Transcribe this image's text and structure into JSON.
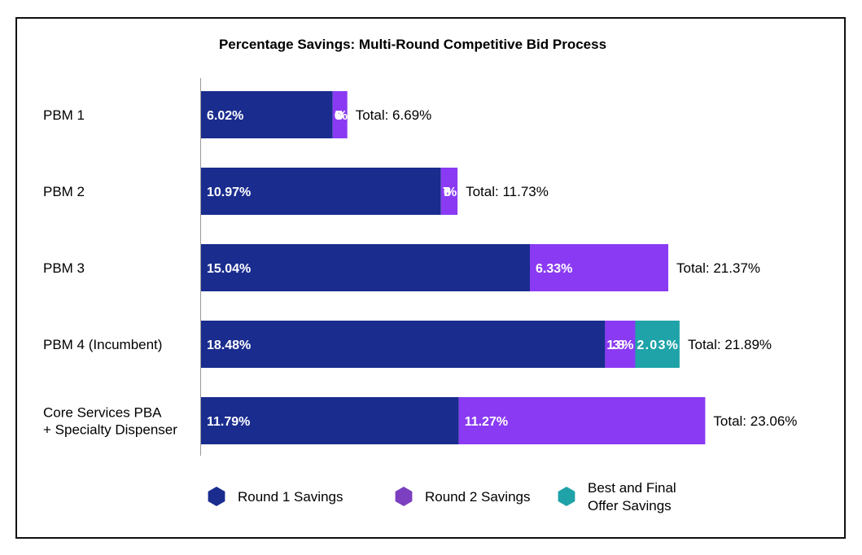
{
  "chart_data": {
    "type": "bar",
    "orientation": "horizontal",
    "stacked": true,
    "title": "Percentage Savings: Multi-Round Competitive Bid Process",
    "categories": [
      [
        "PBM 1"
      ],
      [
        "PBM 2"
      ],
      [
        "PBM 3"
      ],
      [
        "PBM 4 (Incumbent)"
      ],
      [
        "Core Services PBA",
        "+ Specialty Dispenser"
      ]
    ],
    "series": [
      {
        "name": "Round 1 Savings",
        "color": "#1b2c8f",
        "values": [
          6.02,
          10.97,
          15.04,
          18.48,
          11.79
        ],
        "labels": [
          "6.02%",
          "10.97%",
          "15.04%",
          "18.48%",
          "11.79%"
        ]
      },
      {
        "name": "Round 2 Savings",
        "color": "#8a3af2",
        "values": [
          0.67,
          0.76,
          6.33,
          1.38,
          11.27
        ],
        "labels": [
          "0.67%",
          "0.76%",
          "6.33%",
          "1.38%",
          "11.27%"
        ]
      },
      {
        "name": "Best and Final Offer Savings",
        "color": "#1fa3a8",
        "values": [
          0,
          0,
          0,
          2.03,
          0
        ],
        "labels": [
          "",
          "",
          "",
          "2.03%",
          ""
        ]
      }
    ],
    "totals": [
      "Total: 6.69%",
      "Total: 11.73%",
      "Total: 21.37%",
      "Total: 21.89%",
      "Total: 23.06%"
    ],
    "legend": {
      "position": "bottom",
      "items": [
        {
          "lines": [
            "Round 1 Savings"
          ],
          "color": "#1b2c8f",
          "marker": "hexagon"
        },
        {
          "lines": [
            "Round 2 Savings"
          ],
          "color": "#7b3fbf",
          "marker": "hexagon"
        },
        {
          "lines": [
            "Best and Final",
            "Offer Savings"
          ],
          "color": "#1fa3a8",
          "marker": "hexagon"
        }
      ]
    },
    "grid": false,
    "xlim": [
      0,
      23.06
    ]
  }
}
